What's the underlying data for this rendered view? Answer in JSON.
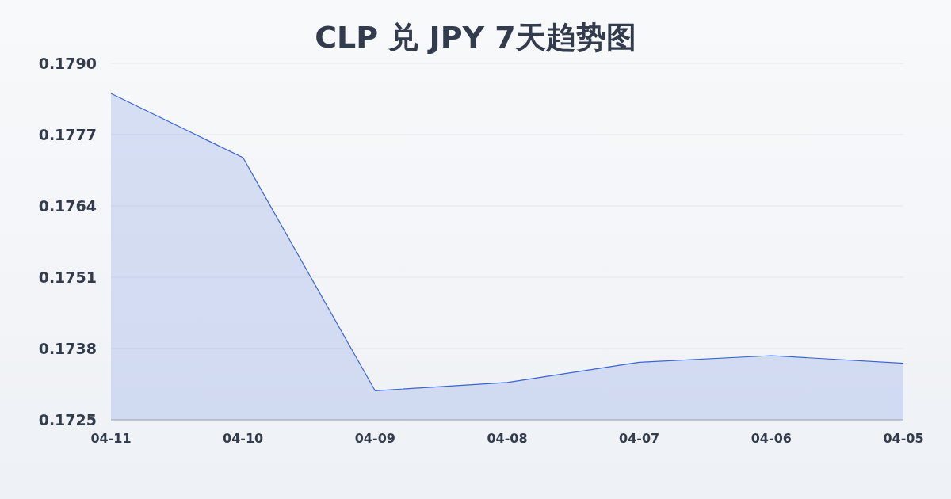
{
  "chart_data": {
    "type": "area",
    "title": "CLP 兑 JPY 7天趋势图",
    "categories": [
      "04-11",
      "04-10",
      "04-09",
      "04-08",
      "04-07",
      "04-06",
      "04-05"
    ],
    "series": [
      {
        "color": "#3a63d4",
        "values": [
          0.17845,
          0.17728,
          0.17303,
          0.17318,
          0.17355,
          0.17367,
          0.17353
        ]
      }
    ],
    "ylim": [
      0.1725,
      0.179
    ],
    "yticks": [
      {
        "value": 0.1725,
        "label": "0.1725"
      },
      {
        "value": 0.1738,
        "label": "0.1738"
      },
      {
        "value": 0.1751,
        "label": "0.1751"
      },
      {
        "value": 0.1764,
        "label": "0.1764"
      },
      {
        "value": 0.1777,
        "label": "0.1777"
      },
      {
        "value": 0.179,
        "label": "0.1790"
      }
    ],
    "grid": "y"
  }
}
